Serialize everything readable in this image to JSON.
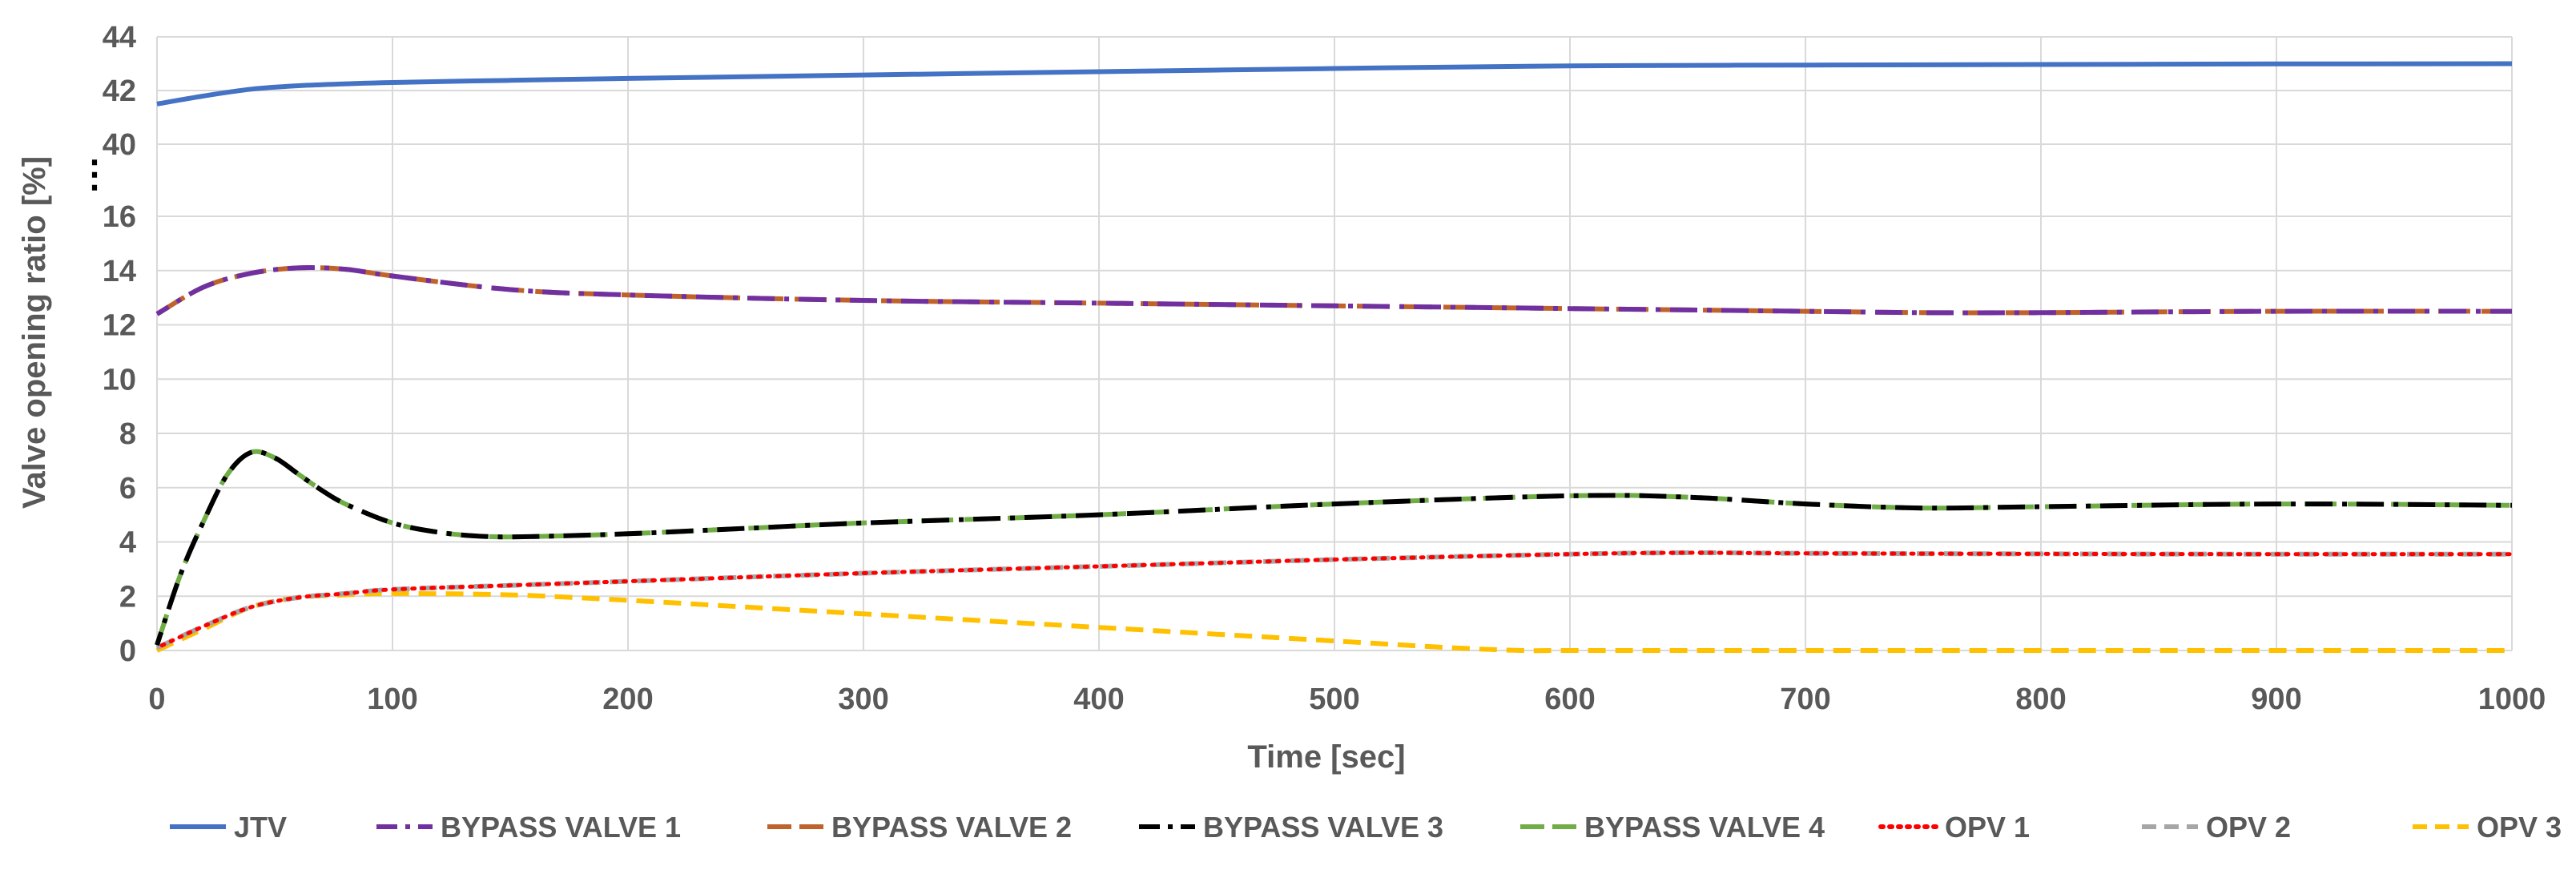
{
  "chart_data": {
    "type": "line",
    "xlabel": "Time [sec]",
    "ylabel": "Valve opening ratio [%]",
    "x_ticks": [
      0,
      100,
      200,
      300,
      400,
      500,
      600,
      700,
      800,
      900,
      1000
    ],
    "y_ticks_lower": [
      0,
      2,
      4,
      6,
      8,
      10,
      12,
      14,
      16
    ],
    "y_ticks_upper": [
      40,
      42,
      44
    ],
    "y_break_symbol": "⋮",
    "xlim": [
      0,
      1000
    ],
    "ylim_lower": [
      0,
      16
    ],
    "ylim_upper": [
      40,
      44
    ],
    "grid": true,
    "legend_position": "bottom",
    "series": [
      {
        "name": "JTV",
        "color": "#4472c4",
        "style": "solid",
        "axis": "upper",
        "x": [
          0,
          20,
          40,
          60,
          80,
          100,
          150,
          200,
          300,
          400,
          500,
          600,
          700,
          800,
          900,
          1000
        ],
        "y": [
          41.5,
          41.8,
          42.05,
          42.18,
          42.25,
          42.3,
          42.38,
          42.45,
          42.58,
          42.7,
          42.82,
          42.92,
          42.95,
          42.97,
          42.99,
          43.0
        ]
      },
      {
        "name": "BYPASS VALVE 1",
        "color": "#7030a0",
        "style": "dashdot",
        "axis": "lower",
        "x": [
          0,
          20,
          40,
          60,
          80,
          100,
          150,
          200,
          300,
          400,
          500,
          600,
          700,
          750,
          800,
          900,
          1000
        ],
        "y": [
          12.4,
          13.4,
          13.9,
          14.1,
          14.05,
          13.8,
          13.3,
          13.1,
          12.9,
          12.8,
          12.7,
          12.6,
          12.5,
          12.45,
          12.45,
          12.5,
          12.5
        ]
      },
      {
        "name": "BYPASS VALVE 2",
        "color": "#c0622b",
        "style": "longdash",
        "axis": "lower",
        "x": [
          0,
          20,
          40,
          60,
          80,
          100,
          150,
          200,
          300,
          400,
          500,
          600,
          700,
          750,
          800,
          900,
          1000
        ],
        "y": [
          12.4,
          13.4,
          13.9,
          14.1,
          14.05,
          13.8,
          13.3,
          13.1,
          12.9,
          12.8,
          12.7,
          12.6,
          12.5,
          12.45,
          12.45,
          12.5,
          12.5
        ]
      },
      {
        "name": "BYPASS VALVE 3",
        "color": "#000000",
        "style": "dashdot",
        "axis": "lower",
        "x": [
          0,
          10,
          20,
          30,
          40,
          50,
          60,
          70,
          80,
          100,
          120,
          140,
          160,
          200,
          250,
          300,
          400,
          500,
          600,
          650,
          700,
          750,
          800,
          900,
          1000
        ],
        "y": [
          0.2,
          2.8,
          4.8,
          6.5,
          7.3,
          7.1,
          6.5,
          5.9,
          5.4,
          4.7,
          4.35,
          4.2,
          4.2,
          4.3,
          4.5,
          4.7,
          5.0,
          5.4,
          5.7,
          5.65,
          5.4,
          5.25,
          5.3,
          5.4,
          5.35
        ]
      },
      {
        "name": "BYPASS VALVE 4",
        "color": "#70ad47",
        "style": "longdash",
        "axis": "lower",
        "x": [
          0,
          10,
          20,
          30,
          40,
          50,
          60,
          70,
          80,
          100,
          120,
          140,
          160,
          200,
          250,
          300,
          400,
          500,
          600,
          650,
          700,
          750,
          800,
          900,
          1000
        ],
        "y": [
          0.2,
          2.8,
          4.8,
          6.5,
          7.3,
          7.1,
          6.5,
          5.9,
          5.4,
          4.7,
          4.35,
          4.2,
          4.2,
          4.3,
          4.5,
          4.7,
          5.0,
          5.4,
          5.7,
          5.65,
          5.4,
          5.25,
          5.3,
          5.4,
          5.35
        ]
      },
      {
        "name": "OPV 1",
        "color": "#ff0000",
        "style": "dotted",
        "axis": "lower",
        "x": [
          0,
          20,
          40,
          60,
          80,
          100,
          150,
          200,
          300,
          400,
          500,
          600,
          650,
          700,
          800,
          900,
          1000
        ],
        "y": [
          0.1,
          0.9,
          1.6,
          1.95,
          2.1,
          2.25,
          2.4,
          2.55,
          2.85,
          3.1,
          3.35,
          3.55,
          3.6,
          3.58,
          3.56,
          3.55,
          3.55
        ]
      },
      {
        "name": "OPV 2",
        "color": "#a6a6a6",
        "style": "dash",
        "axis": "lower",
        "x": [
          0,
          20,
          40,
          60,
          80,
          100,
          150,
          200,
          300,
          400,
          500,
          600,
          650,
          700,
          800,
          900,
          1000
        ],
        "y": [
          0.1,
          0.9,
          1.6,
          1.95,
          2.1,
          2.25,
          2.4,
          2.55,
          2.85,
          3.1,
          3.35,
          3.55,
          3.6,
          3.58,
          3.56,
          3.55,
          3.55
        ]
      },
      {
        "name": "OPV 3",
        "color": "#ffc000",
        "style": "dash",
        "axis": "lower",
        "x": [
          0,
          20,
          40,
          60,
          80,
          100,
          150,
          200,
          250,
          300,
          350,
          400,
          450,
          500,
          550,
          580,
          600,
          700,
          800,
          900,
          1000
        ],
        "y": [
          0.0,
          0.8,
          1.6,
          1.95,
          2.05,
          2.1,
          2.05,
          1.85,
          1.6,
          1.35,
          1.1,
          0.85,
          0.6,
          0.35,
          0.1,
          0.0,
          0.0,
          0.0,
          0.0,
          0.0,
          0.0
        ]
      }
    ]
  }
}
